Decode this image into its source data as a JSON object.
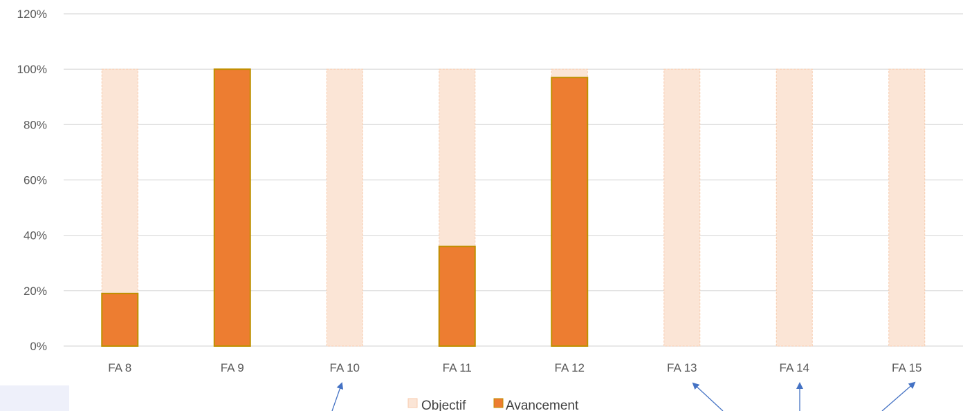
{
  "chart_data": {
    "type": "bar",
    "title": "",
    "xlabel": "",
    "ylabel": "",
    "categories": [
      "FA 8",
      "FA 9",
      "FA 10",
      "FA 11",
      "FA 12",
      "FA 13",
      "FA 14",
      "FA 15"
    ],
    "series": [
      {
        "name": "Objectif",
        "values": [
          100,
          100,
          100,
          100,
          100,
          100,
          100,
          100
        ]
      },
      {
        "name": "Avancement",
        "values": [
          19,
          100,
          0,
          36,
          97,
          0,
          0,
          0
        ]
      }
    ],
    "ylim": [
      0,
      120
    ],
    "yticks": [
      "0%",
      "20%",
      "40%",
      "60%",
      "80%",
      "100%",
      "120%"
    ],
    "grid": true,
    "legend_position": "bottom",
    "colors": {
      "objectif_fill": "#fbe5d6",
      "objectif_border": "#f8cbad",
      "avancement_fill": "#ed7d31",
      "avancement_border": "#bf9000",
      "annotation_arrows": "#4472c4"
    }
  }
}
